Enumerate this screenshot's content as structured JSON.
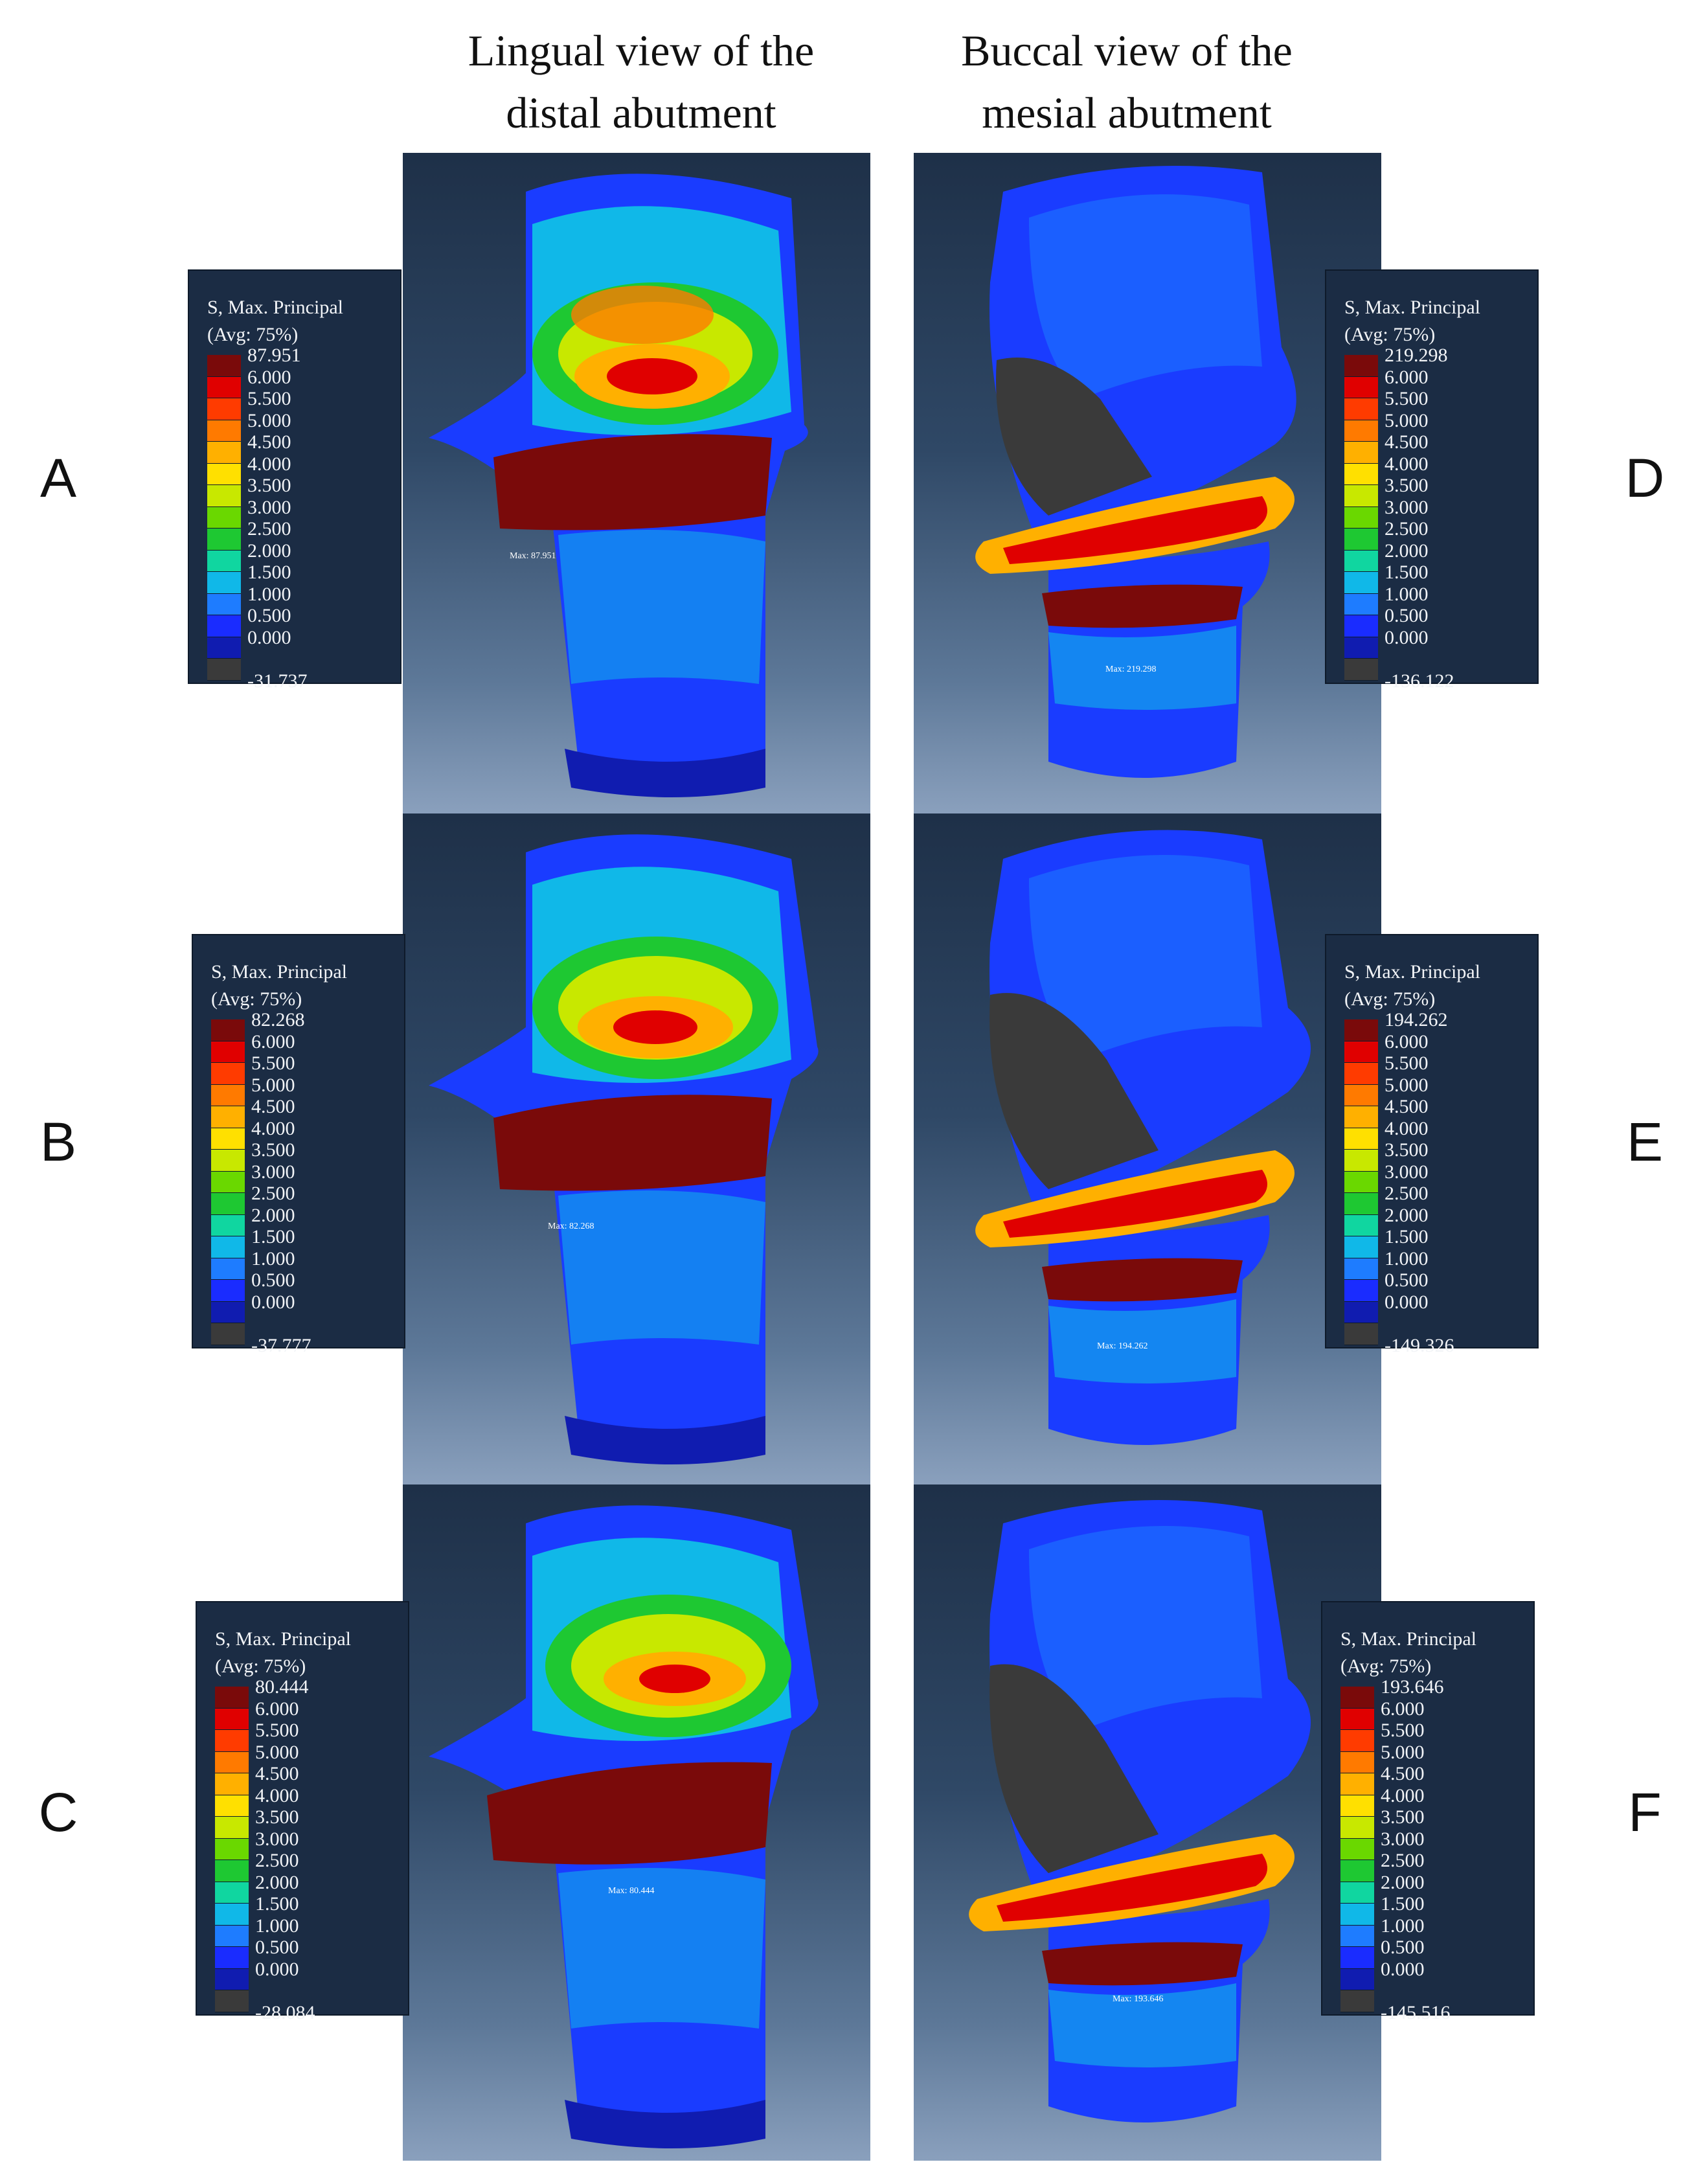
{
  "columns": {
    "left": [
      "Lingual view of the",
      "distal abutment"
    ],
    "right": [
      "Buccal view of the",
      "mesial abutment"
    ]
  },
  "row_letters": [
    "A",
    "B",
    "C",
    "D",
    "E",
    "F"
  ],
  "legend_title": [
    "S, Max. Principal",
    "(Avg: 75%)"
  ],
  "legend_scale": [
    "6.000",
    "5.500",
    "5.000",
    "4.500",
    "4.000",
    "3.500",
    "3.000",
    "2.500",
    "2.000",
    "1.500",
    "1.000",
    "0.500",
    "0.000"
  ],
  "legend_colors": [
    "#7a0a0a",
    "#e00000",
    "#ff3b00",
    "#ff7a00",
    "#ffb000",
    "#ffe000",
    "#c8e800",
    "#6ad800",
    "#1ec832",
    "#10d6a0",
    "#10b8e8",
    "#1e7cff",
    "#1a2cff",
    "#101cb0",
    "#3a3a3a"
  ],
  "legends": {
    "A": {
      "max": "87.951",
      "min": "-31.737"
    },
    "B": {
      "max": "82.268",
      "min": "-37.777"
    },
    "C": {
      "max": "80.444",
      "min": "-28.084"
    },
    "D": {
      "max": "219.298",
      "min": "-136.122"
    },
    "E": {
      "max": "194.262",
      "min": "-149.326"
    },
    "F": {
      "max": "193.646",
      "min": "-145.516"
    }
  },
  "max_tags": {
    "A": "Max: 87.951",
    "B": "Max: 82.268",
    "C": "Max: 80.444",
    "D": "Max: 219.298",
    "E": "Max: 194.262",
    "F": "Max: 193.646"
  }
}
